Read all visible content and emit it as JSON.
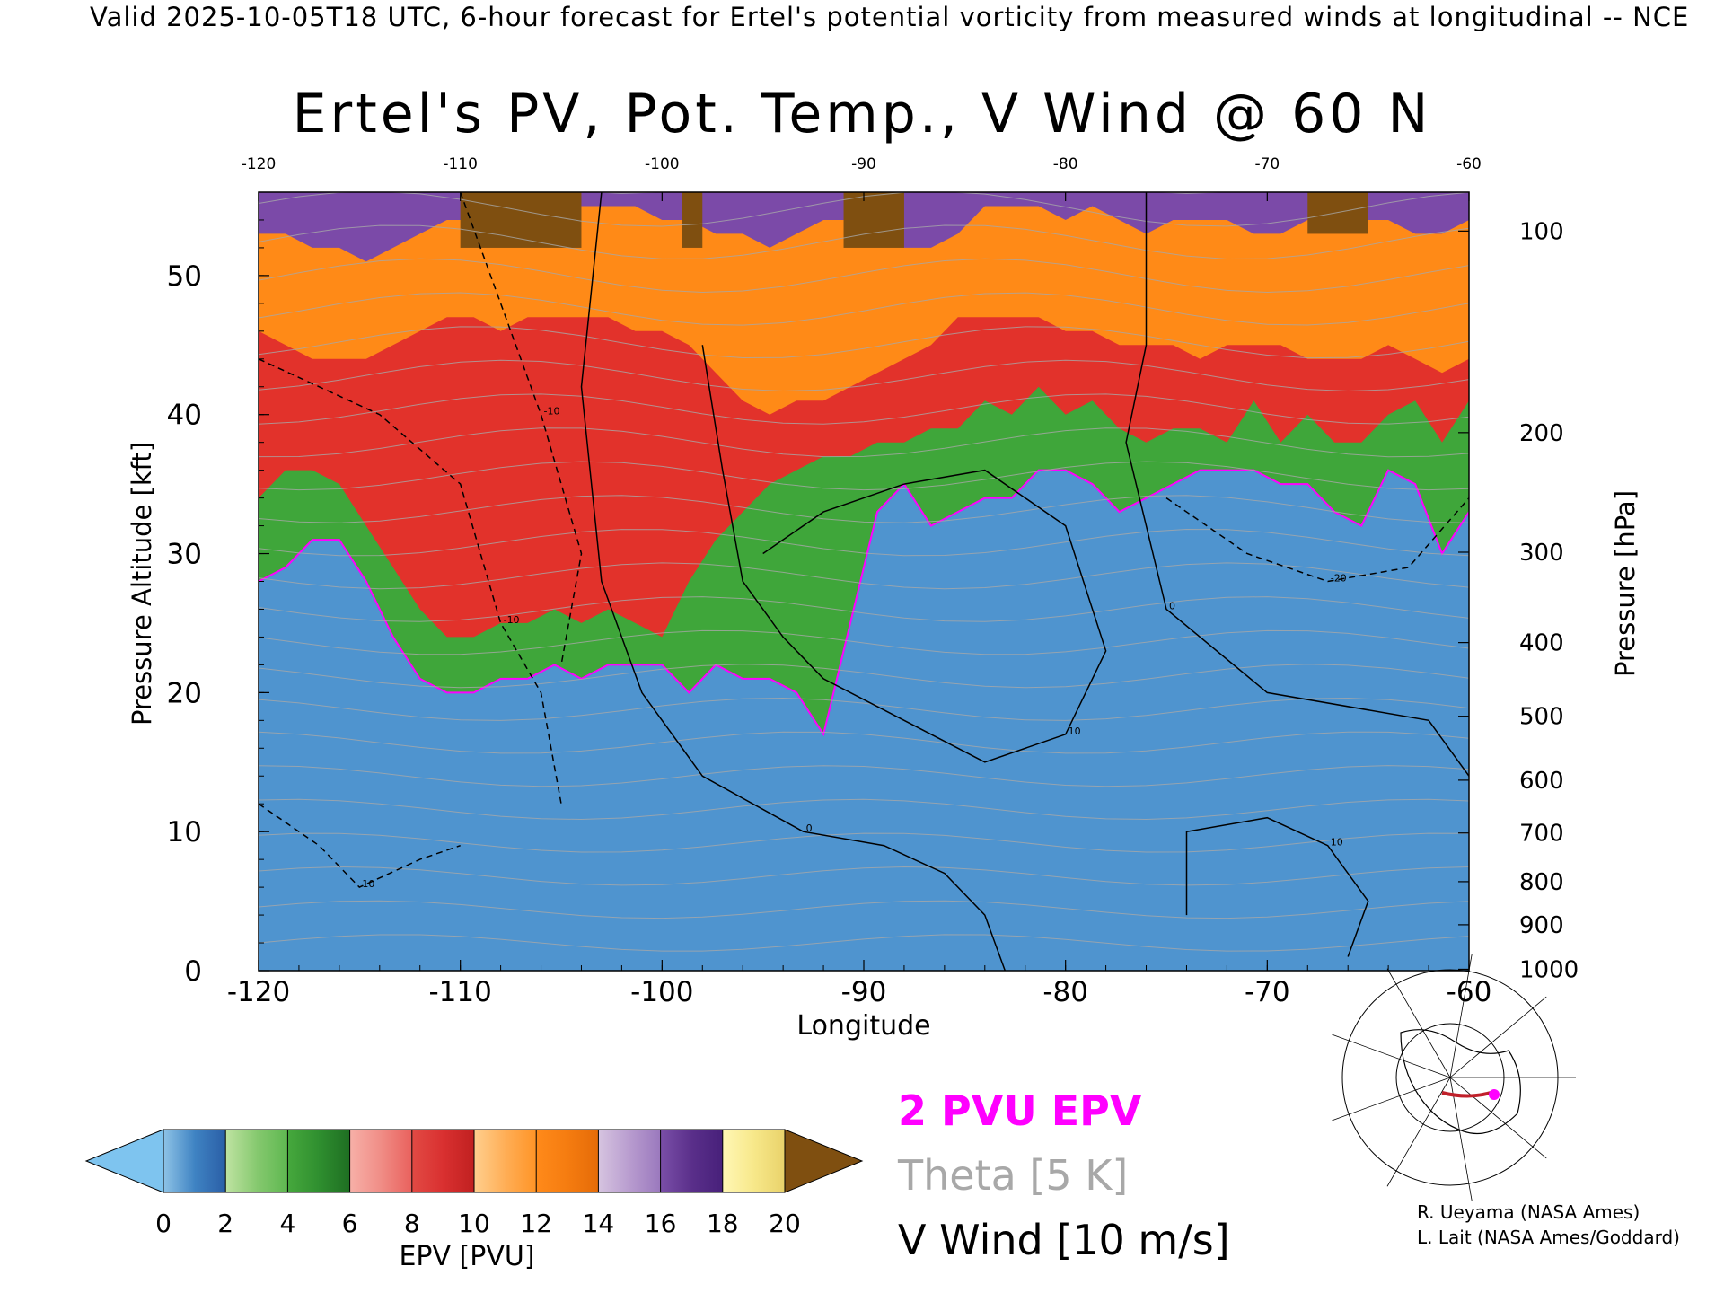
{
  "header": {
    "valid_line": "Valid 2025-10-05T18 UTC, 6-hour forecast for Ertel's potential vorticity from measured winds at longitudinal -- NCE"
  },
  "chart_data": {
    "type": "heatmap",
    "title": "Ertel's PV, Pot. Temp., V Wind @ 60 N",
    "xlabel": "Longitude",
    "ylabel_left": "Pressure Altitude [kft]",
    "ylabel_right": "Pressure [hPa]",
    "xlim": [
      -120,
      -60
    ],
    "ylim_kft": [
      0,
      56
    ],
    "x_ticks": [
      "-120",
      "-110",
      "-100",
      "-90",
      "-80",
      "-70",
      "-60"
    ],
    "top_x_ticks": [
      "-120",
      "-110",
      "-100",
      "-90",
      "-80",
      "-70",
      "-60"
    ],
    "left_y_ticks": [
      {
        "value": 0,
        "label": "0"
      },
      {
        "value": 10,
        "label": "10"
      },
      {
        "value": 20,
        "label": "20"
      },
      {
        "value": 30,
        "label": "30"
      },
      {
        "value": 40,
        "label": "40"
      },
      {
        "value": 50,
        "label": "50"
      }
    ],
    "right_y_ticks": [
      {
        "kft": 0.1,
        "label": "1000"
      },
      {
        "kft": 3.3,
        "label": "900"
      },
      {
        "kft": 6.4,
        "label": "800"
      },
      {
        "kft": 9.9,
        "label": "700"
      },
      {
        "kft": 13.7,
        "label": "600"
      },
      {
        "kft": 18.3,
        "label": "500"
      },
      {
        "kft": 23.6,
        "label": "400"
      },
      {
        "kft": 30.1,
        "label": "300"
      },
      {
        "kft": 38.7,
        "label": "200"
      },
      {
        "kft": 53.2,
        "label": "100"
      }
    ],
    "epv_layers": [
      {
        "name": "0-2 PVU",
        "color": "#4f94cf",
        "top_kft": [
          28,
          29,
          31,
          31,
          28,
          24,
          21,
          20,
          20,
          21,
          21,
          22,
          21,
          22,
          22,
          22,
          20,
          22,
          21,
          21,
          20,
          17,
          25,
          33,
          35,
          32,
          33,
          34,
          34,
          36,
          36,
          35,
          33,
          34,
          35,
          36,
          36,
          36,
          35,
          35,
          33,
          32,
          36,
          35,
          30,
          33
        ]
      },
      {
        "name": "2-6 PVU",
        "color": "#3fa63a",
        "top_kft": [
          34,
          36,
          36,
          35,
          32,
          29,
          26,
          24,
          24,
          25,
          25,
          26,
          25,
          26,
          25,
          24,
          28,
          31,
          33,
          35,
          36,
          37,
          37,
          38,
          38,
          39,
          39,
          41,
          40,
          42,
          40,
          41,
          39,
          38,
          39,
          39,
          38,
          41,
          38,
          40,
          38,
          38,
          40,
          41,
          38,
          41
        ]
      },
      {
        "name": "6-14 PVU",
        "color": "#e2322b",
        "top_kft": [
          46,
          45,
          44,
          44,
          44,
          45,
          46,
          47,
          47,
          46,
          47,
          47,
          47,
          47,
          46,
          46,
          45,
          43,
          41,
          40,
          41,
          41,
          42,
          43,
          44,
          45,
          47,
          47,
          47,
          47,
          46,
          46,
          45,
          45,
          45,
          44,
          45,
          45,
          45,
          44,
          44,
          44,
          45,
          44,
          43,
          44
        ]
      },
      {
        "name": "14-16 PVU",
        "color": "#ff8a17",
        "top_kft": [
          53,
          53,
          52,
          52,
          51,
          52,
          53,
          54,
          54,
          53,
          54,
          55,
          55,
          55,
          55,
          54,
          54,
          53,
          53,
          52,
          53,
          54,
          54,
          53,
          52,
          52,
          53,
          55,
          55,
          55,
          54,
          55,
          54,
          53,
          54,
          54,
          54,
          53,
          53,
          54,
          55,
          54,
          54,
          53,
          53,
          54
        ]
      },
      {
        "name": "16-20 PVU",
        "color": "#7b4aa8",
        "top_kft": [
          56,
          56,
          56,
          56,
          56,
          56,
          56,
          56,
          56,
          56,
          56,
          56,
          56,
          56,
          56,
          56,
          56,
          56,
          56,
          56,
          56,
          56,
          56,
          56,
          56,
          56,
          56,
          56,
          56,
          56,
          56,
          56,
          56,
          56,
          56,
          56,
          56,
          56,
          56,
          56,
          56,
          56,
          56,
          56,
          56,
          56
        ]
      }
    ],
    "brown_patches": [
      {
        "x0": -110,
        "x1": -104,
        "y0": 52,
        "y1": 56
      },
      {
        "x0": -99,
        "x1": -98,
        "y0": 52,
        "y1": 56
      },
      {
        "x0": -91,
        "x1": -88,
        "y0": 52,
        "y1": 56
      },
      {
        "x0": -68,
        "x1": -65,
        "y0": 53,
        "y1": 56
      }
    ],
    "vwind_contours": [
      {
        "label": "0",
        "dash": false,
        "points": [
          [
            -103,
            56
          ],
          [
            -104,
            42
          ],
          [
            -103,
            28
          ],
          [
            -101,
            20
          ],
          [
            -98,
            14
          ],
          [
            -93,
            10
          ],
          [
            -89,
            9
          ],
          [
            -86,
            7
          ],
          [
            -84,
            4
          ],
          [
            -83,
            0
          ]
        ]
      },
      {
        "label": "10",
        "dash": false,
        "points": [
          [
            -98,
            45
          ],
          [
            -97,
            36
          ],
          [
            -96,
            28
          ],
          [
            -94,
            24
          ],
          [
            -92,
            21
          ],
          [
            -88,
            18
          ],
          [
            -84,
            15
          ],
          [
            -80,
            17
          ],
          [
            -78,
            23
          ],
          [
            -80,
            32
          ],
          [
            -84,
            36
          ],
          [
            -88,
            35
          ],
          [
            -92,
            33
          ],
          [
            -95,
            30
          ]
        ]
      },
      {
        "label": "0",
        "dash": false,
        "points": [
          [
            -76,
            56
          ],
          [
            -76,
            45
          ],
          [
            -77,
            38
          ],
          [
            -75,
            26
          ],
          [
            -70,
            20
          ],
          [
            -62,
            18
          ],
          [
            -60,
            14
          ]
        ]
      },
      {
        "label": "10",
        "dash": false,
        "points": [
          [
            -74,
            4
          ],
          [
            -74,
            10
          ],
          [
            -70,
            11
          ],
          [
            -67,
            9
          ],
          [
            -65,
            5
          ],
          [
            -66,
            1
          ]
        ]
      },
      {
        "label": "-10",
        "dash": true,
        "points": [
          [
            -120,
            44
          ],
          [
            -114,
            40
          ],
          [
            -110,
            35
          ],
          [
            -108,
            25
          ],
          [
            -106,
            20
          ],
          [
            -105,
            12
          ]
        ]
      },
      {
        "label": "-10",
        "dash": true,
        "points": [
          [
            -110,
            56
          ],
          [
            -108,
            48
          ],
          [
            -106,
            40
          ],
          [
            -104,
            30
          ],
          [
            -105,
            22
          ]
        ]
      },
      {
        "label": "-20",
        "dash": true,
        "points": [
          [
            -75,
            34
          ],
          [
            -71,
            30
          ],
          [
            -67,
            28
          ],
          [
            -63,
            29
          ],
          [
            -60,
            34
          ]
        ]
      },
      {
        "label": "10",
        "dash": true,
        "points": [
          [
            -120,
            12
          ],
          [
            -117,
            9
          ],
          [
            -115,
            6
          ],
          [
            -112,
            8
          ],
          [
            -110,
            9
          ]
        ]
      }
    ],
    "theta_contours_label": "Theta [5 K]",
    "pv2_label": "2 PVU EPV",
    "vwind_label": "V Wind [10 m/s]",
    "colorbar": {
      "title": "EPV [PVU]",
      "tick_labels": [
        "0",
        "2",
        "4",
        "6",
        "8",
        "10",
        "12",
        "14",
        "16",
        "18",
        "20"
      ],
      "segments": [
        {
          "from": 0,
          "to": 1,
          "colors": [
            "#8ec3e6",
            "#3f83c3"
          ]
        },
        {
          "from": 1,
          "to": 2,
          "colors": [
            "#3f83c3",
            "#2a5ea6"
          ]
        },
        {
          "from": 2,
          "to": 3,
          "colors": [
            "#bfe3a2",
            "#86c96f"
          ]
        },
        {
          "from": 3,
          "to": 4,
          "colors": [
            "#86c96f",
            "#5eb750"
          ]
        },
        {
          "from": 4,
          "to": 5,
          "colors": [
            "#46a83d",
            "#2f8f2f"
          ]
        },
        {
          "from": 5,
          "to": 6,
          "colors": [
            "#2f8f2f",
            "#1e6e22"
          ]
        },
        {
          "from": 6,
          "to": 7,
          "colors": [
            "#f7b0a8",
            "#f08d86"
          ]
        },
        {
          "from": 7,
          "to": 8,
          "colors": [
            "#f08d86",
            "#e9605c"
          ]
        },
        {
          "from": 8,
          "to": 9,
          "colors": [
            "#e24a44",
            "#d93030"
          ]
        },
        {
          "from": 9,
          "to": 10,
          "colors": [
            "#d93030",
            "#c02020"
          ]
        },
        {
          "from": 10,
          "to": 11,
          "colors": [
            "#ffcf8e",
            "#ffae56"
          ]
        },
        {
          "from": 11,
          "to": 12,
          "colors": [
            "#ffae56",
            "#ff9426"
          ]
        },
        {
          "from": 12,
          "to": 13,
          "colors": [
            "#ff8a1a",
            "#f57c10"
          ]
        },
        {
          "from": 13,
          "to": 14,
          "colors": [
            "#f57c10",
            "#e56b08"
          ]
        },
        {
          "from": 14,
          "to": 15,
          "colors": [
            "#d6c4e0",
            "#b89ccf"
          ]
        },
        {
          "from": 15,
          "to": 16,
          "colors": [
            "#b89ccf",
            "#9a78bd"
          ]
        },
        {
          "from": 16,
          "to": 17,
          "colors": [
            "#7a4fa8",
            "#5a2f8a"
          ]
        },
        {
          "from": 17,
          "to": 18,
          "colors": [
            "#5a2f8a",
            "#47207a"
          ]
        },
        {
          "from": 18,
          "to": 19,
          "colors": [
            "#fff7b5",
            "#f7e88a"
          ]
        },
        {
          "from": 19,
          "to": 20,
          "colors": [
            "#f7e88a",
            "#e9d26a"
          ]
        }
      ],
      "under_color": "#7ec4ef",
      "over_color": "#7f4f10"
    }
  },
  "legend": {
    "epv_label": "2 PVU EPV",
    "theta_label": "Theta [5 K]",
    "vwind_label": "V Wind [10 m/s]",
    "epv_color": "#ff00ff",
    "theta_color": "#a8a8a8",
    "vwind_color": "#000000"
  },
  "credits": {
    "line1": "R. Ueyama (NASA Ames)",
    "line2": "L. Lait (NASA Ames/Goddard)"
  }
}
